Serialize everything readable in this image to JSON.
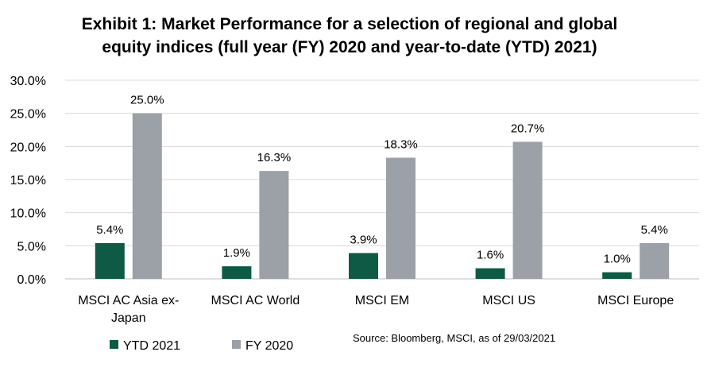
{
  "chart_data": {
    "type": "bar",
    "title_line1": "Exhibit 1: Market Performance for a selection of regional and global",
    "title_line2": "equity indices (full year (FY) 2020 and year-to-date (YTD) 2021)",
    "categories": [
      [
        "MSCI AC Asia ex-",
        "Japan"
      ],
      [
        "MSCI AC World"
      ],
      [
        "MSCI EM"
      ],
      [
        "MSCI US"
      ],
      [
        "MSCI Europe"
      ]
    ],
    "series": [
      {
        "name": "YTD 2021",
        "color": "#0e5a44",
        "values": [
          5.4,
          1.9,
          3.9,
          1.6,
          1.0
        ],
        "labels": [
          "5.4%",
          "1.9%",
          "3.9%",
          "1.6%",
          "1.0%"
        ]
      },
      {
        "name": "FY 2020",
        "color": "#9ba1a6",
        "values": [
          25.0,
          16.3,
          18.3,
          20.7,
          5.4
        ],
        "labels": [
          "25.0%",
          "16.3%",
          "18.3%",
          "20.7%",
          "5.4%"
        ]
      }
    ],
    "ylim": [
      0,
      30
    ],
    "yticks": [
      "0.0%",
      "5.0%",
      "10.0%",
      "15.0%",
      "20.0%",
      "25.0%",
      "30.0%"
    ],
    "grid": true,
    "legend_position": "bottom-left",
    "source": "Source: Bloomberg, MSCI, as of 29/03/2021"
  }
}
